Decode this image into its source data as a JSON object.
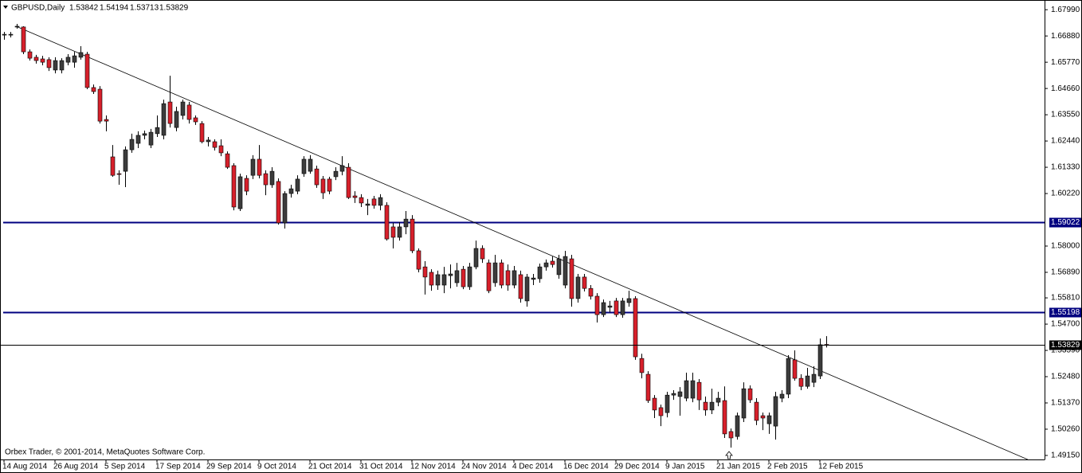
{
  "chart_data": {
    "type": "candlestick",
    "symbol": "GBPUSD,Daily",
    "credit": "Orbex Trader, © 2001-2014, MetaQuotes Software Corp.",
    "categories": [
      "14 Aug 2014",
      null,
      null,
      null,
      null,
      null,
      null,
      null,
      "26 Aug 2014",
      null,
      null,
      null,
      null,
      null,
      null,
      null,
      "5 Sep 2014",
      null,
      null,
      null,
      null,
      null,
      null,
      null,
      "17 Sep 2014",
      null,
      null,
      null,
      null,
      null,
      null,
      null,
      "29 Sep 2014",
      null,
      null,
      null,
      null,
      null,
      null,
      null,
      "9 Oct 2014",
      null,
      null,
      null,
      null,
      null,
      null,
      null,
      "21 Oct 2014",
      null,
      null,
      null,
      null,
      null,
      null,
      null,
      "31 Oct 2014",
      null,
      null,
      null,
      null,
      null,
      null,
      null,
      "12 Nov 2014",
      null,
      null,
      null,
      null,
      null,
      null,
      null,
      "24 Nov 2014",
      null,
      null,
      null,
      null,
      null,
      null,
      null,
      "4 Dec 2014",
      null,
      null,
      null,
      null,
      null,
      null,
      null,
      "16 Dec 2014",
      null,
      null,
      null,
      null,
      null,
      null,
      null,
      "29 Dec 2014",
      null,
      null,
      null,
      null,
      null,
      null,
      null,
      "9 Jan 2015",
      null,
      null,
      null,
      null,
      null,
      null,
      null,
      "21 Jan 2015",
      null,
      null,
      null,
      null,
      null,
      null,
      null,
      "2 Feb 2015",
      null,
      null,
      null,
      null,
      null,
      null,
      null,
      "12 Feb 2015",
      null
    ],
    "open": [
      1.6692,
      1.6692,
      1.6726,
      1.6726,
      1.6621,
      1.6598,
      1.6591,
      1.6588,
      1.6544,
      1.6544,
      1.6577,
      1.6577,
      1.6598,
      1.6611,
      1.647,
      1.6463,
      1.6335,
      1.6177,
      1.6106,
      1.6116,
      1.6207,
      1.6234,
      1.6268,
      1.6227,
      1.6275,
      1.6268,
      1.6409,
      1.6301,
      1.6352,
      1.6396,
      1.6342,
      1.6318,
      1.6241,
      1.6241,
      1.6224,
      1.619,
      1.614,
      1.5958,
      1.6086,
      1.6099,
      1.6167,
      1.6106,
      1.6059,
      1.6073,
      1.5898,
      1.6022,
      1.6032,
      1.6106,
      1.6116,
      1.6126,
      1.6083,
      1.6083,
      1.6093,
      1.6116,
      1.6133,
      1.6012,
      1.6005,
      1.5972,
      1.5999,
      1.5972,
      1.5972,
      1.5881,
      1.5837,
      1.5881,
      1.5914,
      1.578,
      1.5712,
      1.5689,
      1.5635,
      1.5635,
      1.5675,
      1.5645,
      1.5702,
      1.5628,
      1.5712,
      1.579,
      1.5729,
      1.5645,
      1.5729,
      1.5696,
      1.5635,
      1.5679,
      1.5568,
      1.5659,
      1.5662,
      1.5712,
      1.5736,
      1.5679,
      1.5635,
      1.5746,
      1.5578,
      1.5669,
      1.5621,
      1.5588,
      1.551,
      1.5541,
      1.5568,
      1.551,
      1.5561,
      1.5578,
      1.5325,
      1.5258,
      1.5157,
      1.5117,
      1.5096,
      1.517,
      1.5164,
      1.5157,
      1.5157,
      1.5224,
      1.514,
      1.5107,
      1.514,
      1.5147,
      1.5016,
      1.4995,
      1.5073,
      1.5197,
      1.514,
      1.5083,
      1.5049,
      1.5039,
      1.5157,
      1.5174,
      1.5319,
      1.5241,
      1.5207,
      1.5224,
      1.5251,
      1.53842
    ],
    "high": [
      1.6705,
      1.6705,
      1.6739,
      1.6729,
      1.6631,
      1.6608,
      1.6604,
      1.6598,
      1.6598,
      1.6594,
      1.6611,
      1.6621,
      1.6645,
      1.6621,
      1.6483,
      1.6476,
      1.6352,
      1.6227,
      1.612,
      1.6221,
      1.6275,
      1.6285,
      1.6288,
      1.6295,
      1.6352,
      1.6419,
      1.652,
      1.6389,
      1.6419,
      1.6409,
      1.6352,
      1.6328,
      1.6261,
      1.6251,
      1.6251,
      1.62,
      1.615,
      1.6106,
      1.6099,
      1.6184,
      1.6227,
      1.612,
      1.6133,
      1.6086,
      1.6032,
      1.6059,
      1.6099,
      1.618,
      1.6184,
      1.614,
      1.6096,
      1.6093,
      1.6133,
      1.618,
      1.615,
      1.6032,
      1.6019,
      1.5999,
      1.6012,
      1.6019,
      1.5985,
      1.5898,
      1.5901,
      1.5948,
      1.5931,
      1.579,
      1.5736,
      1.5702,
      1.5696,
      1.5712,
      1.5722,
      1.5729,
      1.5716,
      1.5729,
      1.5823,
      1.5803,
      1.5743,
      1.5763,
      1.5743,
      1.5722,
      1.5716,
      1.5696,
      1.5682,
      1.5682,
      1.5726,
      1.5743,
      1.5756,
      1.5763,
      1.578,
      1.5763,
      1.5682,
      1.5682,
      1.5635,
      1.5601,
      1.5574,
      1.5568,
      1.5581,
      1.5581,
      1.5611,
      1.5588,
      1.5345,
      1.5271,
      1.517,
      1.513,
      1.5184,
      1.5191,
      1.5204,
      1.5265,
      1.5265,
      1.5238,
      1.5164,
      1.5197,
      1.5184,
      1.5207,
      1.5029,
      1.5096,
      1.5224,
      1.5211,
      1.5157,
      1.5096,
      1.5096,
      1.5184,
      1.5191,
      1.5339,
      1.5359,
      1.5258,
      1.5285,
      1.5292,
      1.5409,
      1.54194
    ],
    "low": [
      1.6672,
      1.6682,
      1.6719,
      1.6611,
      1.6584,
      1.6571,
      1.6564,
      1.654,
      1.653,
      1.653,
      1.6564,
      1.6554,
      1.6588,
      1.6463,
      1.6443,
      1.6318,
      1.6285,
      1.6093,
      1.6059,
      1.6049,
      1.6194,
      1.6214,
      1.6251,
      1.6214,
      1.6261,
      1.6251,
      1.6301,
      1.6285,
      1.6335,
      1.6318,
      1.6312,
      1.6234,
      1.6221,
      1.6204,
      1.618,
      1.6126,
      1.5951,
      1.5948,
      1.6015,
      1.6083,
      1.6086,
      1.6015,
      1.6046,
      1.5891,
      1.5874,
      1.6005,
      1.6019,
      1.6093,
      1.6106,
      1.6046,
      1.5999,
      1.6019,
      1.6079,
      1.6099,
      1.5999,
      1.5982,
      1.5965,
      1.5931,
      1.5958,
      1.5951,
      1.5823,
      1.579,
      1.5823,
      1.585,
      1.577,
      1.5689,
      1.5595,
      1.5611,
      1.5615,
      1.5601,
      1.5621,
      1.5628,
      1.5618,
      1.5615,
      1.5702,
      1.5729,
      1.5601,
      1.5628,
      1.5621,
      1.5611,
      1.5621,
      1.5561,
      1.5544,
      1.5635,
      1.5645,
      1.5696,
      1.5709,
      1.5662,
      1.5621,
      1.5544,
      1.5561,
      1.5608,
      1.5574,
      1.5477,
      1.55,
      1.552,
      1.55,
      1.5497,
      1.5544,
      1.5319,
      1.5241,
      1.5137,
      1.5073,
      1.5039,
      1.5076,
      1.515,
      1.5083,
      1.5144,
      1.514,
      1.5107,
      1.5083,
      1.509,
      1.5123,
      1.4989,
      1.4948,
      1.4982,
      1.5056,
      1.5137,
      1.5043,
      1.5022,
      1.5006,
      1.4982,
      1.514,
      1.5157,
      1.5231,
      1.5191,
      1.5197,
      1.5204,
      1.5238,
      1.53713
    ],
    "close": [
      1.6695,
      1.6695,
      1.6729,
      1.6621,
      1.6594,
      1.6584,
      1.6577,
      1.6554,
      1.6584,
      1.6584,
      1.6598,
      1.6604,
      1.6618,
      1.647,
      1.6453,
      1.6328,
      1.6328,
      1.6099,
      1.6103,
      1.6207,
      1.6251,
      1.6268,
      1.6275,
      1.6281,
      1.6301,
      1.6402,
      1.6318,
      1.6369,
      1.6409,
      1.6335,
      1.6325,
      1.6241,
      1.6248,
      1.6217,
      1.6194,
      1.6133,
      1.5965,
      1.6093,
      1.6032,
      1.6167,
      1.6099,
      1.6059,
      1.6116,
      1.5898,
      1.6022,
      1.6042,
      1.6083,
      1.6167,
      1.6167,
      1.6059,
      1.6025,
      1.6032,
      1.6116,
      1.614,
      1.6005,
      1.6005,
      1.5982,
      1.5978,
      1.5972,
      1.6005,
      1.583,
      1.5837,
      1.5881,
      1.5914,
      1.578,
      1.5702,
      1.5669,
      1.5635,
      1.5679,
      1.5679,
      1.5682,
      1.5696,
      1.5628,
      1.5712,
      1.579,
      1.5746,
      1.5611,
      1.5729,
      1.5635,
      1.5635,
      1.5696,
      1.5578,
      1.5669,
      1.5665,
      1.5712,
      1.5729,
      1.5722,
      1.5746,
      1.5756,
      1.5578,
      1.5669,
      1.5621,
      1.5588,
      1.551,
      1.5561,
      1.5547,
      1.551,
      1.5568,
      1.5578,
      1.5332,
      1.5265,
      1.5147,
      1.5107,
      1.5083,
      1.517,
      1.5177,
      1.5184,
      1.5231,
      1.5231,
      1.515,
      1.5107,
      1.514,
      1.5157,
      1.5006,
      1.4989,
      1.5083,
      1.5197,
      1.515,
      1.5063,
      1.5073,
      1.5083,
      1.5164,
      1.5174,
      1.5325,
      1.5241,
      1.5207,
      1.5251,
      1.5258,
      1.5383,
      1.53829
    ],
    "up_color": "#3c3c3c",
    "down_color": "#d7202b",
    "wick_color": "#000000",
    "xlim": [
      -0.625,
      163.25
    ],
    "ylim": [
      1.4898,
      1.684
    ],
    "yticks": [
      {
        "value": 1.6799,
        "label": "1.67990"
      },
      {
        "value": 1.6688,
        "label": "1.66880"
      },
      {
        "value": 1.6577,
        "label": "1.65770"
      },
      {
        "value": 1.6466,
        "label": "1.64660"
      },
      {
        "value": 1.6355,
        "label": "1.63550"
      },
      {
        "value": 1.6244,
        "label": "1.62440"
      },
      {
        "value": 1.6133,
        "label": "1.61330"
      },
      {
        "value": 1.6022,
        "label": "1.60220"
      },
      {
        "value": 1.58,
        "label": "1.58000"
      },
      {
        "value": 1.5689,
        "label": "1.56890"
      },
      {
        "value": 1.5581,
        "label": "1.55810"
      },
      {
        "value": 1.547,
        "label": "1.54700"
      },
      {
        "value": 1.5359,
        "label": "1.53590"
      },
      {
        "value": 1.5248,
        "label": "1.52480"
      },
      {
        "value": 1.5137,
        "label": "1.51370"
      },
      {
        "value": 1.5026,
        "label": "1.50260"
      },
      {
        "value": 1.4915,
        "label": "1.49150"
      }
    ],
    "levels": [
      {
        "value": 1.59022,
        "color": "#000080"
      },
      {
        "value": 1.55198,
        "color": "#000080"
      }
    ],
    "price_line": true,
    "trendline": {
      "x": [
        1.9,
        160.6
      ],
      "y": [
        1.6729,
        1.4898
      ],
      "color": "#000000"
    },
    "grid": false
  }
}
